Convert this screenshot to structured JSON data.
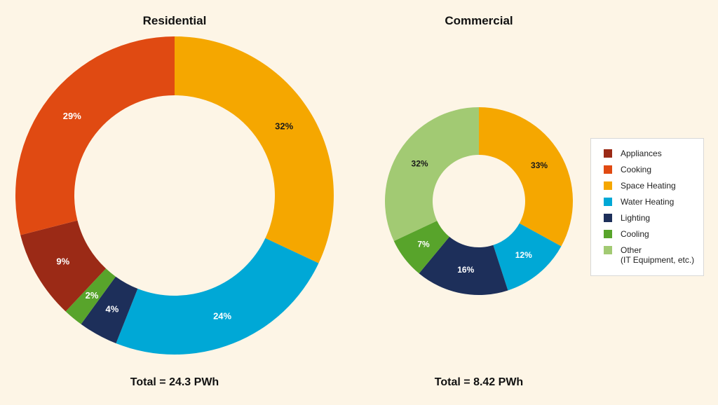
{
  "legend": [
    {
      "label": "Appliances",
      "color": "#9b2a16"
    },
    {
      "label": "Cooking",
      "color": "#e04a12"
    },
    {
      "label": "Space Heating",
      "color": "#f5a700"
    },
    {
      "label": "Water Heating",
      "color": "#00a8d6"
    },
    {
      "label": "Lighting",
      "color": "#1d2f5a"
    },
    {
      "label": "Cooling",
      "color": "#58a42b"
    },
    {
      "label": "Other",
      "sublabel": "(IT Equipment, etc.)",
      "color": "#a2ca73"
    }
  ],
  "chart_data": [
    {
      "type": "pie",
      "title": "Residential",
      "total_label": "Total = 24.3 PWh",
      "slices": [
        {
          "name": "Space Heating",
          "value": 32,
          "label": "32%",
          "color": "#f5a700"
        },
        {
          "name": "Water Heating",
          "value": 24,
          "label": "24%",
          "color": "#00a8d6"
        },
        {
          "name": "Lighting",
          "value": 4,
          "label": "4%",
          "color": "#1d2f5a"
        },
        {
          "name": "Cooling",
          "value": 2,
          "label": "2%",
          "color": "#58a42b"
        },
        {
          "name": "Appliances",
          "value": 9,
          "label": "9%",
          "color": "#9b2a16"
        },
        {
          "name": "Cooking",
          "value": 29,
          "label": "29%",
          "color": "#e04a12"
        }
      ]
    },
    {
      "type": "pie",
      "title": "Commercial",
      "total_label": "Total = 8.42 PWh",
      "slices": [
        {
          "name": "Space Heating",
          "value": 33,
          "label": "33%",
          "color": "#f5a700"
        },
        {
          "name": "Water Heating",
          "value": 12,
          "label": "12%",
          "color": "#00a8d6"
        },
        {
          "name": "Lighting",
          "value": 16,
          "label": "16%",
          "color": "#1d2f5a"
        },
        {
          "name": "Cooling",
          "value": 7,
          "label": "7%",
          "color": "#58a42b"
        },
        {
          "name": "Other (IT Equipment, etc.)",
          "value": 32,
          "label": "32%",
          "color": "#a2ca73"
        }
      ]
    }
  ]
}
